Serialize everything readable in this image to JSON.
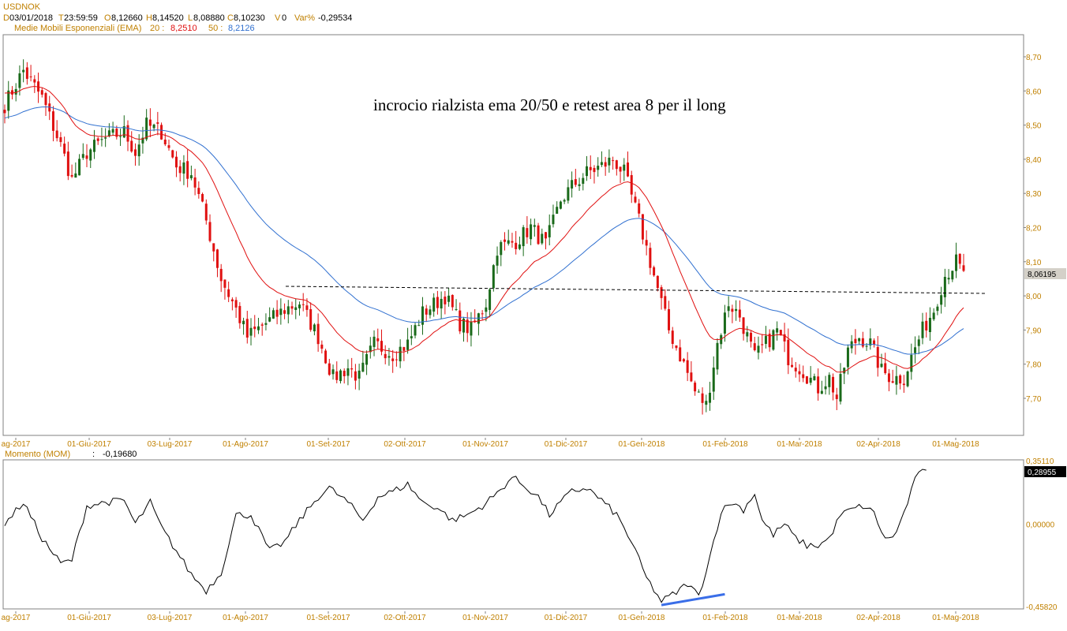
{
  "header": {
    "symbol": "USDNOK",
    "date_label": "D",
    "date": "03/01/2018",
    "time_label": "T",
    "time": "23:59:59",
    "open_label": "O",
    "open": "8,12660",
    "high_label": "H",
    "high": "8,14520",
    "low_label": "L",
    "low": "8,08880",
    "close_label": "C",
    "close": "8,10230",
    "volume_label": "V",
    "volume": "0",
    "var_label": "Var%",
    "var": "-0,29534",
    "ema_label": "Medie Mobili Esponenziali (EMA)",
    "ema20_label": "20 :",
    "ema20_value": "8,2510",
    "ema50_label": "50 :",
    "ema50_value": "8,2126"
  },
  "annotation": "incrocio rialzista ema 20/50 e retest area 8 per il long",
  "price_last_label": "8,06195",
  "momentum": {
    "label": "Momento (MOM)",
    "sep": ":",
    "value": "-0,19680",
    "last_label": "0,28955"
  },
  "colors": {
    "bull": "#1a6a1a",
    "bear": "#e01010",
    "ema20": "#e01010",
    "ema50": "#3070d0",
    "axis_text": "#c08000",
    "momentum_line": "#000000",
    "trend_line": "#3a6ee8"
  },
  "chart_data": [
    {
      "type": "candlestick",
      "title": "USDNOK",
      "x_tick_labels": [
        "ag-2017",
        "01-Giu-2017",
        "03-Lug-2017",
        "01-Ago-2017",
        "01-Set-2017",
        "02-Ott-2017",
        "01-Nov-2017",
        "01-Dic-2017",
        "01-Gen-2018",
        "01-Feb-2018",
        "01-Mar-2018",
        "02-Apr-2018",
        "01-Mag-2018"
      ],
      "y_ticks": [
        "8,70",
        "8,60",
        "8,50",
        "8,40",
        "8,30",
        "8,20",
        "8,10",
        "8,00",
        "7,90",
        "7,80",
        "7,70"
      ],
      "ylim": [
        7.6,
        8.76
      ],
      "close_anchors": [
        [
          0,
          8.56
        ],
        [
          5,
          8.66
        ],
        [
          10,
          8.58
        ],
        [
          15,
          8.44
        ],
        [
          18,
          8.34
        ],
        [
          22,
          8.42
        ],
        [
          27,
          8.46
        ],
        [
          32,
          8.48
        ],
        [
          35,
          8.42
        ],
        [
          38,
          8.5
        ],
        [
          42,
          8.48
        ],
        [
          46,
          8.38
        ],
        [
          50,
          8.36
        ],
        [
          54,
          8.22
        ],
        [
          58,
          8.05
        ],
        [
          62,
          7.96
        ],
        [
          65,
          7.88
        ],
        [
          70,
          7.92
        ],
        [
          75,
          7.96
        ],
        [
          79,
          7.98
        ],
        [
          84,
          7.88
        ],
        [
          88,
          7.76
        ],
        [
          92,
          7.79
        ],
        [
          95,
          7.76
        ],
        [
          99,
          7.86
        ],
        [
          104,
          7.83
        ],
        [
          108,
          7.86
        ],
        [
          112,
          7.95
        ],
        [
          118,
          8.0
        ],
        [
          122,
          7.92
        ],
        [
          125,
          7.9
        ],
        [
          129,
          7.98
        ],
        [
          132,
          8.14
        ],
        [
          137,
          8.16
        ],
        [
          141,
          8.2
        ],
        [
          145,
          8.15
        ],
        [
          149,
          8.28
        ],
        [
          152,
          8.32
        ],
        [
          156,
          8.36
        ],
        [
          160,
          8.38
        ],
        [
          163,
          8.4
        ],
        [
          166,
          8.36
        ],
        [
          170,
          8.22
        ],
        [
          174,
          8.06
        ],
        [
          178,
          7.9
        ],
        [
          182,
          7.8
        ],
        [
          185,
          7.72
        ],
        [
          188,
          7.68
        ],
        [
          191,
          7.86
        ],
        [
          194,
          7.98
        ],
        [
          197,
          7.94
        ],
        [
          201,
          7.82
        ],
        [
          204,
          7.86
        ],
        [
          207,
          7.9
        ],
        [
          210,
          7.82
        ],
        [
          214,
          7.78
        ],
        [
          218,
          7.73
        ],
        [
          221,
          7.76
        ],
        [
          223,
          7.7
        ],
        [
          226,
          7.84
        ],
        [
          229,
          7.88
        ],
        [
          232,
          7.86
        ],
        [
          235,
          7.78
        ],
        [
          238,
          7.76
        ],
        [
          241,
          7.76
        ],
        [
          243,
          7.82
        ],
        [
          246,
          7.9
        ],
        [
          249,
          7.96
        ],
        [
          252,
          8.06
        ],
        [
          255,
          8.1
        ],
        [
          257,
          8.06
        ]
      ],
      "ema20_last": 7.925,
      "ema50_last": 7.875,
      "resistance_level": 8.01
    },
    {
      "type": "line",
      "title": "Momento (MOM)",
      "y_tick_labels": [
        "0,35110",
        "0,00000",
        "-0,45820"
      ],
      "ylim": [
        -0.4582,
        0.3511
      ],
      "anchors": [
        [
          0,
          0.0
        ],
        [
          5,
          0.12
        ],
        [
          10,
          -0.08
        ],
        [
          15,
          -0.22
        ],
        [
          18,
          -0.2
        ],
        [
          22,
          0.1
        ],
        [
          27,
          0.12
        ],
        [
          32,
          0.13
        ],
        [
          35,
          0.0
        ],
        [
          39,
          0.12
        ],
        [
          42,
          -0.02
        ],
        [
          46,
          -0.15
        ],
        [
          50,
          -0.28
        ],
        [
          54,
          -0.37
        ],
        [
          58,
          -0.27
        ],
        [
          62,
          0.05
        ],
        [
          66,
          0.05
        ],
        [
          71,
          -0.15
        ],
        [
          75,
          -0.1
        ],
        [
          79,
          0.02
        ],
        [
          84,
          0.15
        ],
        [
          87,
          0.2
        ],
        [
          92,
          0.12
        ],
        [
          96,
          0.02
        ],
        [
          100,
          0.15
        ],
        [
          104,
          0.18
        ],
        [
          108,
          0.22
        ],
        [
          112,
          0.12
        ],
        [
          116,
          0.09
        ],
        [
          120,
          0.02
        ],
        [
          124,
          0.05
        ],
        [
          128,
          0.1
        ],
        [
          132,
          0.17
        ],
        [
          136,
          0.26
        ],
        [
          140,
          0.2
        ],
        [
          143,
          0.15
        ],
        [
          146,
          0.05
        ],
        [
          149,
          0.12
        ],
        [
          152,
          0.18
        ],
        [
          156,
          0.2
        ],
        [
          160,
          0.13
        ],
        [
          164,
          0.05
        ],
        [
          168,
          -0.1
        ],
        [
          172,
          -0.3
        ],
        [
          176,
          -0.43
        ],
        [
          180,
          -0.38
        ],
        [
          183,
          -0.33
        ],
        [
          186,
          -0.4
        ],
        [
          189,
          -0.18
        ],
        [
          192,
          0.07
        ],
        [
          195,
          0.12
        ],
        [
          198,
          0.08
        ],
        [
          201,
          0.17
        ],
        [
          203,
          0.02
        ],
        [
          206,
          -0.06
        ],
        [
          209,
          0.0
        ],
        [
          212,
          -0.08
        ],
        [
          215,
          -0.12
        ],
        [
          218,
          -0.12
        ],
        [
          221,
          -0.08
        ],
        [
          224,
          0.05
        ],
        [
          227,
          0.08
        ],
        [
          230,
          0.1
        ],
        [
          233,
          0.06
        ],
        [
          236,
          -0.09
        ],
        [
          239,
          -0.05
        ],
        [
          242,
          0.12
        ],
        [
          245,
          0.3
        ],
        [
          247,
          0.28
        ]
      ],
      "trend_line": [
        [
          176,
          -0.45
        ],
        [
          193,
          -0.39
        ]
      ]
    }
  ]
}
